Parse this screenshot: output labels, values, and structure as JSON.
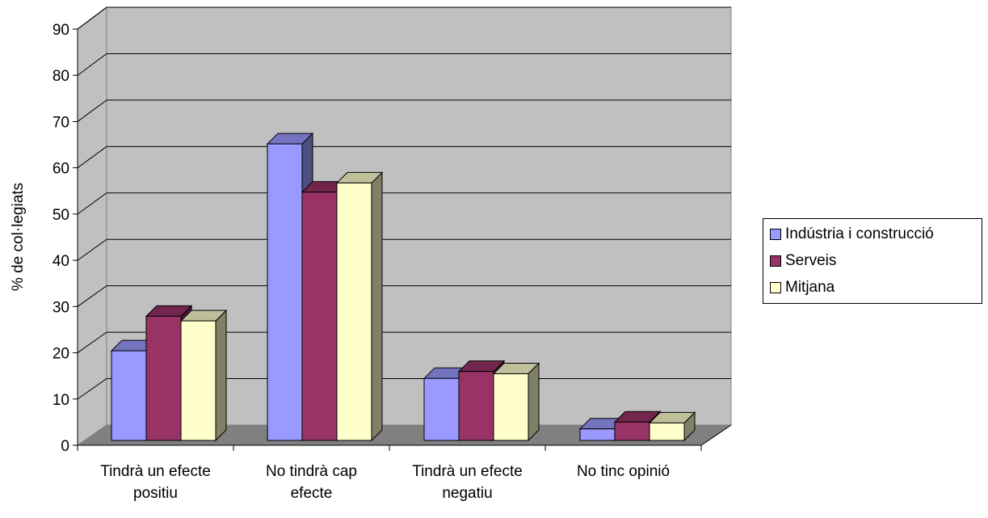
{
  "chart_data": {
    "type": "bar",
    "title": "",
    "xlabel": "",
    "ylabel": "% de col·legiats",
    "ylim": [
      0,
      90
    ],
    "yticks": [
      "0",
      "10",
      "20",
      "30",
      "40",
      "50",
      "60",
      "70",
      "80",
      "90"
    ],
    "categories": [
      [
        "Tindrà un efecte",
        "positiu"
      ],
      [
        "No tindrà cap",
        "efecte"
      ],
      [
        "Tindrà un efecte",
        "negatiu"
      ],
      [
        "No tinc opinió"
      ]
    ],
    "series": [
      {
        "name": "Indústria i construcció",
        "color": "#9999ff",
        "values": [
          19.5,
          64.5,
          13.5,
          2.5
        ]
      },
      {
        "name": "Serveis",
        "color": "#993366",
        "values": [
          27,
          54,
          15,
          4
        ]
      },
      {
        "name": "Mitjana",
        "color": "#ffffcc",
        "values": [
          26,
          56,
          14.5,
          3.8
        ]
      }
    ],
    "grid": true,
    "legend_position": "right",
    "style": "3d-clustered-column",
    "wall_color": "#c0c0c0",
    "floor_color": "#808080"
  }
}
